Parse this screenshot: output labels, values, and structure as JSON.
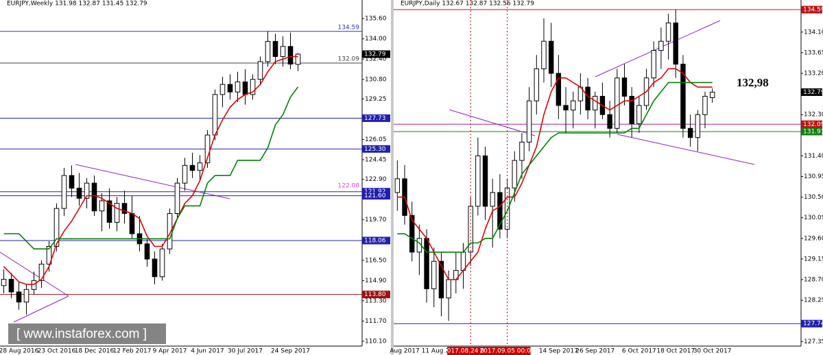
{
  "chart_data": [
    {
      "type": "candlestick",
      "header": "EURJPY,Weekly  131.98 132.87 131.45 132.79",
      "categories": [
        null,
        null,
        "28 Aug 2016",
        null,
        null,
        null,
        null,
        "23 Oct 2016",
        null,
        null,
        null,
        null,
        "18 Dec 2016",
        null,
        null,
        null,
        null,
        "12 Feb 2017",
        null,
        null,
        null,
        null,
        "9 Apr 2017",
        null,
        null,
        null,
        null,
        "4 Jun 2017",
        null,
        null,
        null,
        null,
        "30 Jul 2017",
        null,
        null,
        null,
        null,
        null,
        "24 Sep 2017",
        null
      ],
      "open": [
        114.5,
        115.0,
        114.0,
        113.2,
        114.2,
        114.9,
        116.2,
        117.6,
        120.6,
        123.2,
        122.2,
        121.4,
        122.6,
        120.4,
        121.2,
        119.5,
        121.0,
        120.2,
        118.6,
        117.8,
        116.6,
        115.2,
        117.4,
        120.2,
        122.6,
        124.0,
        123.6,
        124.2,
        126.4,
        129.6,
        130.4,
        129.8,
        130.6,
        129.6,
        130.8,
        132.2,
        133.8,
        132.6,
        133.4,
        131.98
      ],
      "high": [
        115.8,
        115.5,
        114.8,
        114.6,
        115.6,
        116.5,
        118.0,
        121.0,
        123.8,
        124.0,
        123.4,
        123.0,
        123.2,
        121.8,
        122.2,
        121.5,
        122.0,
        121.6,
        120.0,
        118.2,
        117.2,
        117.8,
        120.6,
        123.0,
        124.6,
        125.0,
        124.8,
        126.8,
        130.0,
        131.0,
        131.2,
        131.4,
        131.6,
        131.2,
        132.6,
        134.6,
        134.4,
        134.2,
        134.5,
        132.87
      ],
      "low": [
        113.9,
        113.5,
        112.6,
        112.2,
        113.8,
        114.3,
        115.6,
        117.2,
        120.0,
        121.5,
        120.8,
        120.6,
        120.0,
        118.8,
        119.0,
        118.8,
        119.4,
        118.2,
        117.2,
        116.0,
        114.6,
        114.9,
        117.0,
        119.8,
        122.0,
        123.0,
        122.8,
        123.8,
        126.0,
        128.6,
        129.2,
        129.0,
        128.8,
        129.2,
        130.4,
        131.8,
        132.0,
        131.8,
        131.6,
        131.45
      ],
      "close": [
        115.0,
        114.0,
        113.2,
        114.2,
        114.9,
        116.2,
        117.6,
        120.6,
        123.2,
        122.2,
        121.4,
        122.6,
        120.4,
        121.2,
        119.5,
        121.0,
        120.2,
        118.6,
        117.8,
        116.6,
        115.2,
        117.4,
        120.2,
        122.6,
        124.0,
        123.6,
        124.2,
        126.4,
        129.6,
        130.4,
        129.8,
        130.6,
        129.6,
        130.8,
        132.2,
        133.8,
        132.6,
        133.4,
        132.0,
        132.79
      ],
      "series": [
        {
          "color": "#e00000",
          "values": [
            116.0,
            115.4,
            114.8,
            114.6,
            114.6,
            115.0,
            116.0,
            117.8,
            118.8,
            119.6,
            120.6,
            121.6,
            121.6,
            121.4,
            121.0,
            120.6,
            120.4,
            120.2,
            119.8,
            118.4,
            117.6,
            117.6,
            118.6,
            119.8,
            121.0,
            121.6,
            122.8,
            124.6,
            126.4,
            127.6,
            128.6,
            129.2,
            129.6,
            129.8,
            130.4,
            131.4,
            132.2,
            132.4,
            132.6,
            132.6
          ]
        },
        {
          "color": "#008000",
          "values": [
            118.6,
            118.6,
            118.6,
            118.0,
            117.4,
            117.4,
            117.4,
            118.2,
            118.2,
            118.2,
            118.2,
            118.2,
            118.2,
            118.2,
            118.2,
            118.2,
            118.2,
            118.2,
            118.2,
            118.2,
            118.2,
            118.2,
            118.2,
            119.8,
            120.8,
            120.8,
            120.8,
            122.6,
            123.2,
            123.2,
            123.2,
            124.4,
            124.4,
            124.4,
            124.4,
            125.4,
            127.2,
            128.0,
            129.4,
            130.2
          ]
        }
      ],
      "ylim": [
        109.72,
        137.07
      ],
      "yticks": [
        {
          "value": 135.6,
          "label": "135.60"
        },
        {
          "value": 134,
          "label": "134.00"
        },
        {
          "value": 132.4,
          "label": "132.40"
        },
        {
          "value": 130.8,
          "label": "130.80"
        },
        129.25,
        126.05,
        124.45,
        {
          "value": 122.9,
          "label": "122.90"
        },
        {
          "value": 119.7,
          "label": "119.70"
        },
        {
          "value": 116.5,
          "label": "116.50"
        },
        {
          "value": 114.9,
          "label": "114.90"
        },
        {
          "value": 113.3,
          "label": "113.30"
        },
        {
          "value": 111.7,
          "label": "111.70"
        },
        {
          "value": 110.1,
          "label": "110.10"
        }
      ],
      "levels": [
        {
          "value": 134.59,
          "color": "#3030c0",
          "style": "text"
        },
        {
          "value": 132.09,
          "color": "#404040",
          "style": "text"
        },
        {
          "value": 127.73,
          "color": "#2020b0"
        },
        {
          "value": 125.3,
          "label": "125.30",
          "color": "#2020b0"
        },
        {
          "value": 122.08,
          "color": "#e040e0",
          "style": "text",
          "line": false
        },
        {
          "value": 121.92,
          "color": "#2020b0"
        },
        {
          "value": 121.6,
          "label": "121.60",
          "color": "#2020b0"
        },
        {
          "value": 118.06,
          "color": "#2020b0"
        },
        {
          "value": 113.8,
          "label": "113.80",
          "color": "#a01010"
        }
      ],
      "last": 132.79
    },
    {
      "type": "candlestick",
      "header": "EURJPY,Daily  132.67 132.87 132.56 132.79",
      "categories": [
        null,
        "Aug 2017",
        null,
        null,
        null,
        null,
        "11 Aug 2017",
        null,
        null,
        null,
        "2017.08.24 00:00",
        null,
        null,
        null,
        null,
        "2017.09.05 00:00",
        null,
        null,
        null,
        null,
        null,
        null,
        "14 Sep 2017",
        null,
        null,
        null,
        null,
        "26 Sep 2017",
        null,
        null,
        null,
        null,
        null,
        "6 Oct 2017",
        null,
        null,
        null,
        null,
        "18 Oct 2017",
        null,
        null,
        null,
        null,
        "30 Oct 2017"
      ],
      "open": [
        130.6,
        130.9,
        130.1,
        129.3,
        129.6,
        128.5,
        129.1,
        128.3,
        128.7,
        128.9,
        129.3,
        130.3,
        131.4,
        130.3,
        130.6,
        129.8,
        130.7,
        131.3,
        131.7,
        132.6,
        133.3,
        133.9,
        133.2,
        132.5,
        132.4,
        132.6,
        132.9,
        132.4,
        132.7,
        132.3,
        132.0,
        133.1,
        132.7,
        132.1,
        132.5,
        133.1,
        133.7,
        133.9,
        134.3,
        133.4,
        132.0,
        131.8,
        132.3,
        132.67
      ],
      "high": [
        131.3,
        131.2,
        130.4,
        129.9,
        129.8,
        129.4,
        129.3,
        128.9,
        129.3,
        129.5,
        130.5,
        131.8,
        131.6,
        130.9,
        131.0,
        130.9,
        131.5,
        131.9,
        132.9,
        133.6,
        134.4,
        134.3,
        133.6,
        132.9,
        132.8,
        133.2,
        133.1,
        132.8,
        133.0,
        132.6,
        133.3,
        133.4,
        132.9,
        132.7,
        133.3,
        133.9,
        134.2,
        134.5,
        134.6,
        133.6,
        132.3,
        132.4,
        132.8,
        132.87
      ],
      "low": [
        130.2,
        129.9,
        129.1,
        128.8,
        128.2,
        128.1,
        127.9,
        127.8,
        128.4,
        128.5,
        129.0,
        130.1,
        130.0,
        129.4,
        129.6,
        129.6,
        130.4,
        130.9,
        131.5,
        132.3,
        133.0,
        132.9,
        132.2,
        131.9,
        132.0,
        132.3,
        132.2,
        132.0,
        132.2,
        131.8,
        131.9,
        132.5,
        131.8,
        131.9,
        132.4,
        132.9,
        133.3,
        133.5,
        133.1,
        131.8,
        131.6,
        131.5,
        132.0,
        132.56
      ],
      "close": [
        130.9,
        130.1,
        129.3,
        129.6,
        128.5,
        129.1,
        128.3,
        128.7,
        128.9,
        129.3,
        130.3,
        131.4,
        130.3,
        130.6,
        129.8,
        130.7,
        131.3,
        131.7,
        132.6,
        133.3,
        133.9,
        133.2,
        132.5,
        132.4,
        132.6,
        132.9,
        132.4,
        132.7,
        132.3,
        132.0,
        133.1,
        132.7,
        132.1,
        132.5,
        133.1,
        133.7,
        133.9,
        134.3,
        133.4,
        132.0,
        131.8,
        132.3,
        132.7,
        132.79
      ],
      "series": [
        {
          "color": "#e00000",
          "values": [
            130.5,
            130.5,
            130.0,
            129.8,
            129.6,
            129.3,
            129.0,
            128.7,
            128.7,
            128.9,
            129.1,
            129.3,
            129.8,
            130.2,
            130.3,
            130.5,
            130.5,
            130.8,
            131.2,
            131.6,
            132.3,
            132.8,
            133.1,
            133.1,
            133.0,
            132.9,
            132.7,
            132.6,
            132.5,
            132.4,
            132.5,
            132.6,
            132.6,
            132.7,
            132.8,
            133.0,
            133.1,
            133.3,
            133.3,
            133.2,
            133.0,
            132.9,
            132.9,
            132.9
          ]
        },
        {
          "color": "#008000",
          "values": [
            129.7,
            129.7,
            129.6,
            129.5,
            129.3,
            129.3,
            129.3,
            129.3,
            129.3,
            129.3,
            129.5,
            129.5,
            129.6,
            129.6,
            129.9,
            130.2,
            130.6,
            131.0,
            131.2,
            131.4,
            131.6,
            131.8,
            131.9,
            131.9,
            131.9,
            131.9,
            131.9,
            131.9,
            131.9,
            131.9,
            131.9,
            131.9,
            132.0,
            132.0,
            132.3,
            132.6,
            132.8,
            133.0,
            133.0,
            133.0,
            133.0,
            133.0,
            133.0,
            133.0
          ]
        }
      ],
      "ylim": [
        127.25,
        134.8
      ],
      "yticks": [
        {
          "value": 134.1,
          "label": "134.10"
        },
        133.65,
        {
          "value": 133.2,
          "label": "133.20"
        },
        {
          "value": 132.3,
          "label": "132.30"
        },
        {
          "value": 131.4,
          "label": "131.40"
        },
        130.95,
        {
          "value": 130.5,
          "label": "130.50"
        },
        130.05,
        {
          "value": 129.6,
          "label": "129.60"
        },
        129.15,
        {
          "value": 128.7,
          "label": "128.70"
        },
        128.25,
        127.35
      ],
      "levels": [
        {
          "value": 134.59,
          "color": "#c01010"
        },
        {
          "value": 132.09,
          "color": "#c01010",
          "line_color": "#a020a0"
        },
        {
          "value": 131.93,
          "color": "#108010"
        },
        {
          "value": 127.74,
          "color": "#2020b0"
        }
      ],
      "last": 132.79,
      "annotation": "132,98"
    }
  ],
  "watermark": "[  www.instaforex.com ]"
}
